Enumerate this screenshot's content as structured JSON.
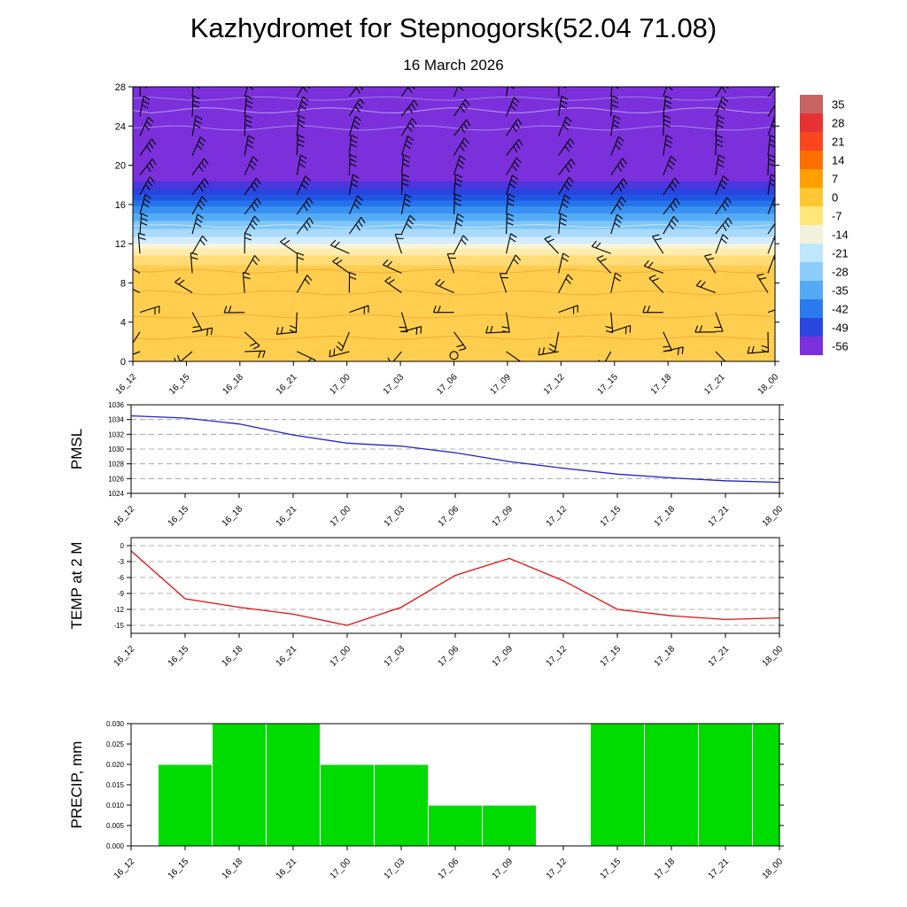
{
  "title": "Kazhydromet for Stepnogorsk(52.04 71.08)",
  "subtitle": "16 March 2026",
  "time_labels": [
    "16_12",
    "16_15",
    "16_18",
    "16_21",
    "17_00",
    "17_03",
    "17_06",
    "17_09",
    "17_12",
    "17_15",
    "17_18",
    "17_21",
    "18_00"
  ],
  "chart_data": [
    {
      "name": "temperature-height-cross-section",
      "type": "heatmap",
      "ylabel": "",
      "ylim": [
        0,
        28
      ],
      "yticks": [
        0,
        4,
        8,
        12,
        16,
        20,
        24,
        28
      ],
      "x": [
        "16_12",
        "16_15",
        "16_18",
        "16_21",
        "17_00",
        "17_03",
        "17_06",
        "17_09",
        "17_12",
        "17_15",
        "17_18",
        "17_21",
        "18_00"
      ],
      "overlay": "wind-barbs",
      "calm_marker": {
        "time": "17_06",
        "height": 0.6
      },
      "bands": [
        {
          "from": 0.0,
          "to": 9.8,
          "color": "#FFCE4E"
        },
        {
          "from": 9.8,
          "to": 10.8,
          "color": "#FFDC78"
        },
        {
          "from": 10.8,
          "to": 11.5,
          "color": "#FFEDAD"
        },
        {
          "from": 11.5,
          "to": 12.0,
          "color": "#F7F5DC"
        },
        {
          "from": 12.0,
          "to": 12.7,
          "color": "#D4ECFD"
        },
        {
          "from": 12.7,
          "to": 13.5,
          "color": "#A9DAFB"
        },
        {
          "from": 13.5,
          "to": 14.3,
          "color": "#7FC6F8"
        },
        {
          "from": 14.3,
          "to": 15.1,
          "color": "#55ACF5"
        },
        {
          "from": 15.1,
          "to": 15.8,
          "color": "#3992F1"
        },
        {
          "from": 15.8,
          "to": 16.4,
          "color": "#2573EC"
        },
        {
          "from": 16.4,
          "to": 17.0,
          "color": "#1F57E4"
        },
        {
          "from": 17.0,
          "to": 17.6,
          "color": "#2A44DF"
        },
        {
          "from": 17.6,
          "to": 18.4,
          "color": "#4A37DD"
        },
        {
          "from": 18.4,
          "to": 28.0,
          "color": "#7B30DC"
        }
      ],
      "colorbar": {
        "values": [
          35,
          28,
          21,
          14,
          7,
          0,
          -7,
          -14,
          -21,
          -28,
          -35,
          -42,
          -49,
          -56
        ],
        "colors": [
          "#C86464",
          "#E63232",
          "#FA461E",
          "#FF6E00",
          "#FFA000",
          "#FFC832",
          "#FFE678",
          "#F2F2DC",
          "#BEE6FD",
          "#8CCCF9",
          "#55AAF5",
          "#2B7BEE",
          "#2A48E0",
          "#7B30DC"
        ]
      }
    },
    {
      "name": "pmsl",
      "type": "line",
      "ylabel": "PMSL",
      "ylim": [
        1024,
        1036
      ],
      "yticks": [
        1024,
        1026,
        1028,
        1030,
        1032,
        1034,
        1036
      ],
      "color": "#2020CC",
      "values": [
        1034.5,
        1034.2,
        1033.4,
        1031.9,
        1030.8,
        1030.4,
        1029.5,
        1028.3,
        1027.4,
        1026.6,
        1026.1,
        1025.7,
        1025.5
      ]
    },
    {
      "name": "temp-2m",
      "type": "line",
      "ylabel": "TEMP at 2 M",
      "ylim": [
        -15,
        0
      ],
      "yticks": [
        0,
        -3,
        -6,
        -9,
        -12,
        -15
      ],
      "color": "#E01010",
      "values": [
        -1.0,
        -10.0,
        -11.6,
        -12.9,
        -15.0,
        -11.6,
        -5.6,
        -2.4,
        -6.6,
        -12.0,
        -13.2,
        -13.9,
        -13.6
      ]
    },
    {
      "name": "precip",
      "type": "bar",
      "ylabel": "PRECIP, mm",
      "ylim": [
        0,
        0.03
      ],
      "yticks": [
        0.0,
        0.005,
        0.01,
        0.015,
        0.02,
        0.025,
        0.03
      ],
      "color": "#00DC00",
      "values": [
        0,
        0.02,
        0.03,
        0.03,
        0.02,
        0.02,
        0.01,
        0.01,
        0,
        0.03,
        0.03,
        0.03,
        0.03
      ]
    }
  ]
}
